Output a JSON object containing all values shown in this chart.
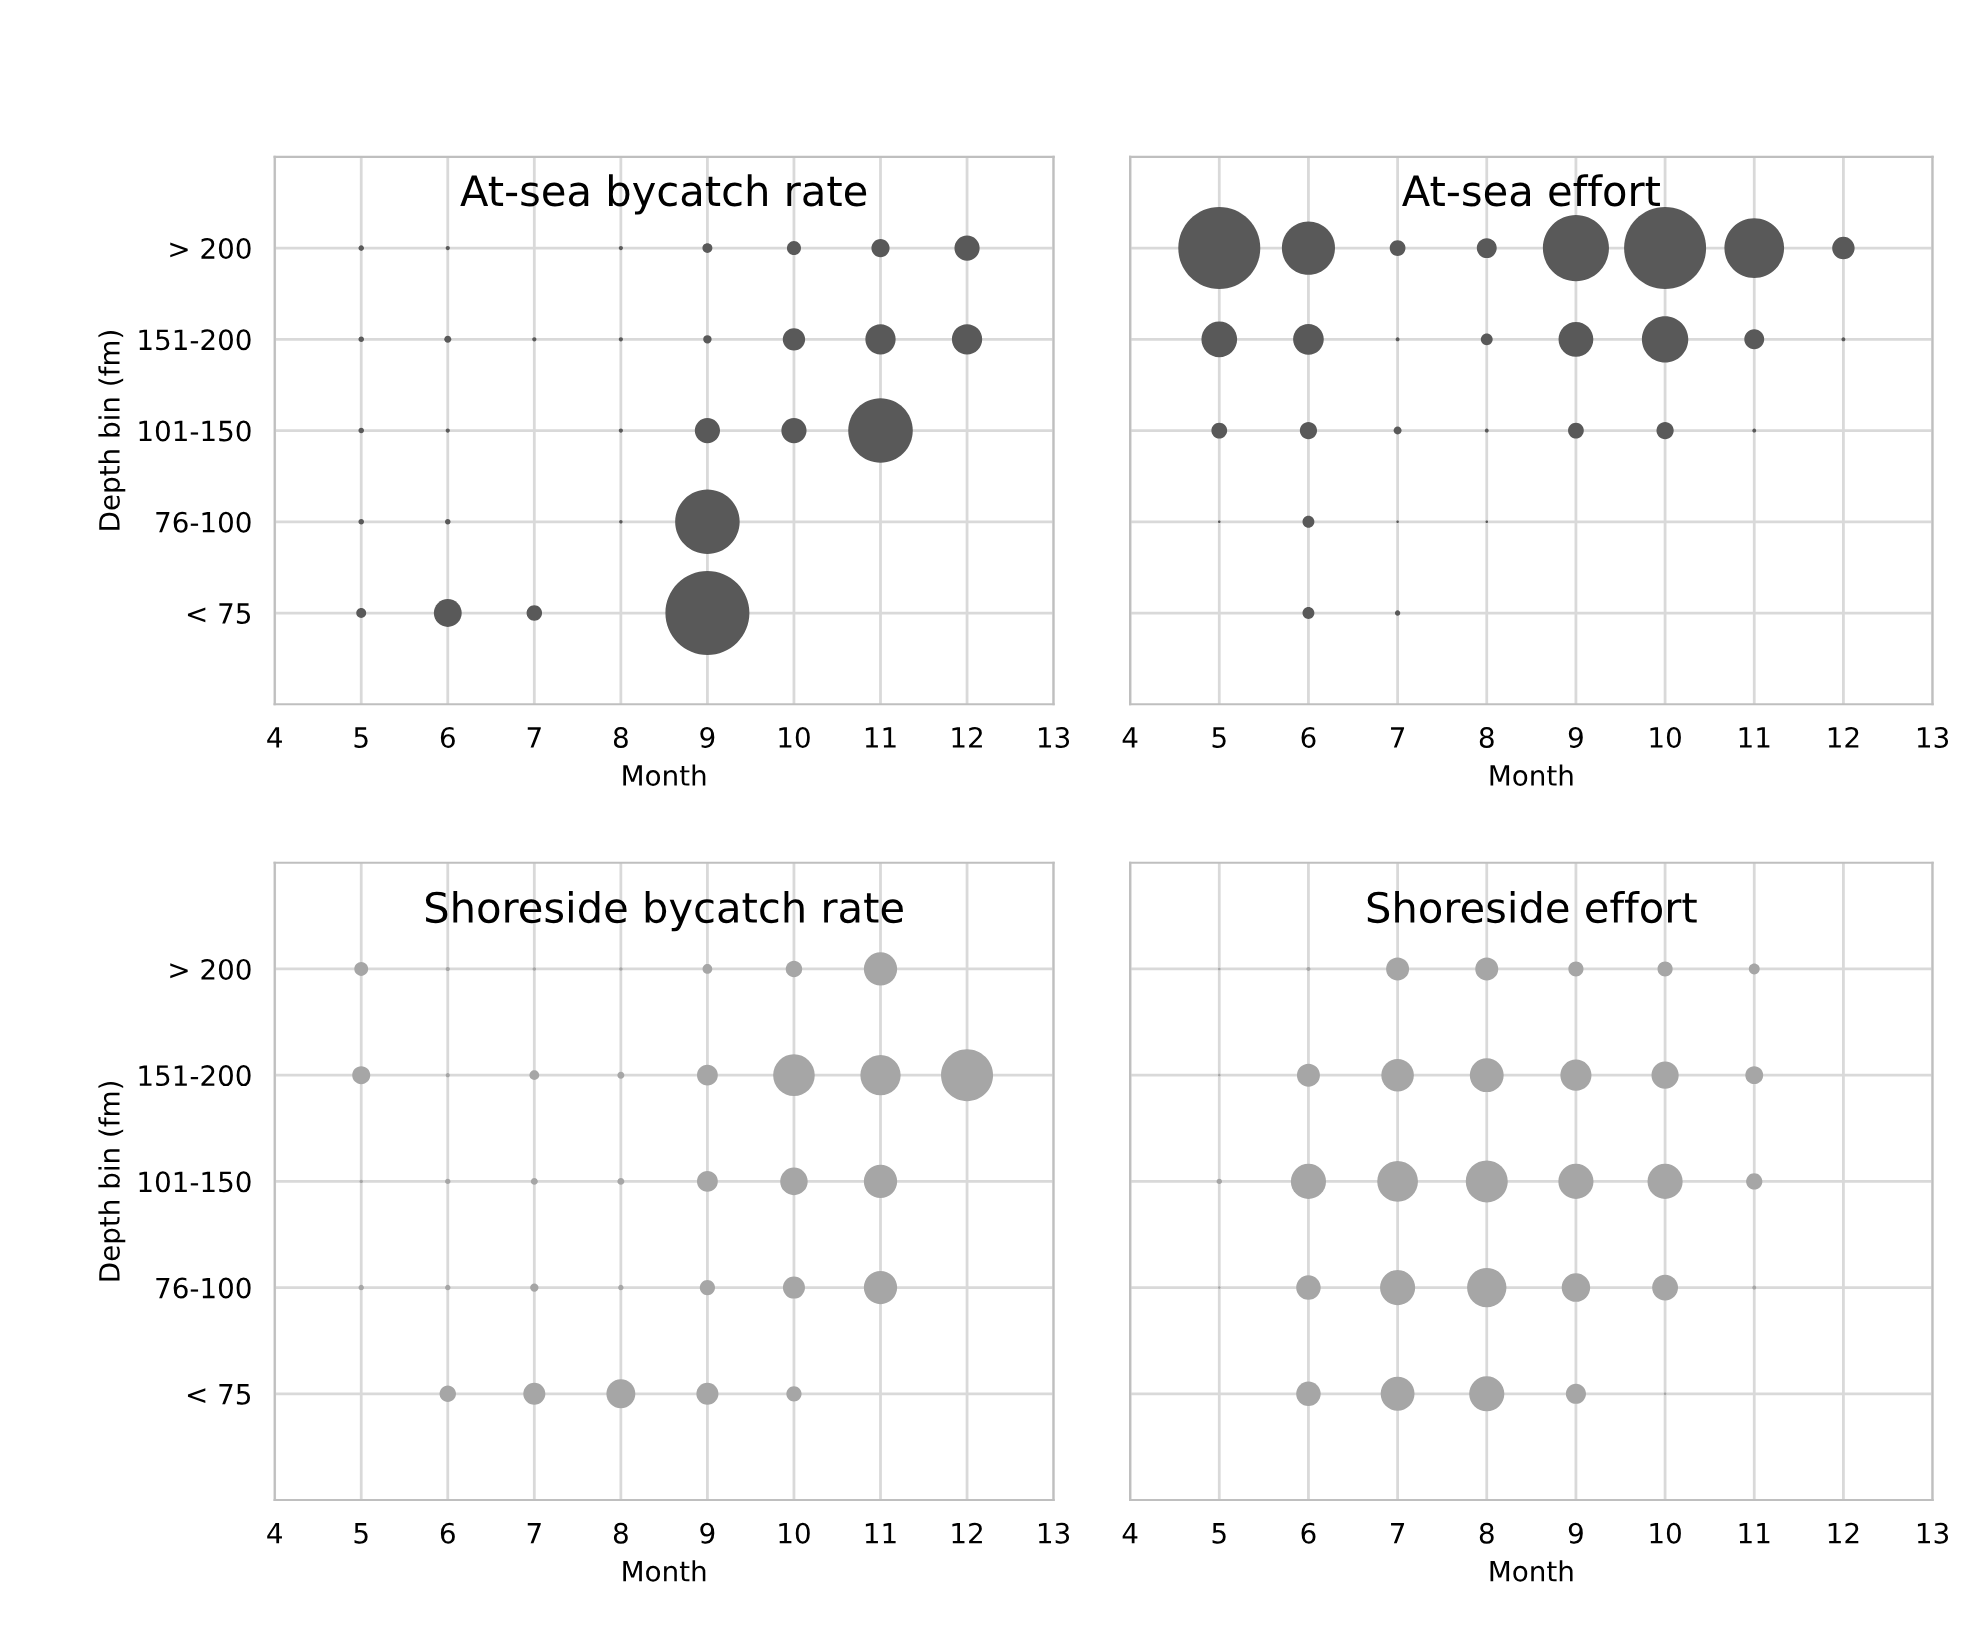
{
  "chart_data": [
    {
      "type": "bubble",
      "orientation": "horizontal",
      "title": "At-sea bycatch rate",
      "xlabel": "Month",
      "ylabel": "Depth bin (fm)",
      "xlim": [
        4,
        13
      ],
      "xticks": [
        4,
        5,
        6,
        7,
        8,
        9,
        10,
        11,
        12,
        13
      ],
      "categories": [
        "> 200",
        "151-200",
        "101-150",
        "76-100",
        "< 75"
      ],
      "grid": true,
      "series": [
        {
          "color": "#595959",
          "values": [
            5,
            5,
            5,
            5,
            5
          ],
          "sizes": [
            0.0044,
            0.0044,
            0.0044,
            0.0044,
            0.014
          ]
        },
        {
          "color": "#595959",
          "values": [
            6,
            6,
            6,
            6,
            6
          ],
          "sizes": [
            0.0025,
            0.007,
            0.0025,
            0.0044,
            0.11
          ]
        },
        {
          "color": "#595959",
          "values": [
            null,
            7,
            null,
            null,
            7
          ],
          "sizes": [
            null,
            0.0025,
            null,
            null,
            0.034
          ]
        },
        {
          "color": "#595959",
          "values": [
            8,
            8,
            8,
            8,
            null
          ],
          "sizes": [
            0.0025,
            0.0025,
            0.0025,
            0.0017,
            null
          ]
        },
        {
          "color": "#595959",
          "values": [
            9,
            9,
            9,
            9,
            9
          ],
          "sizes": [
            0.014,
            0.01,
            0.09,
            0.59,
            1
          ]
        },
        {
          "color": "#595959",
          "values": [
            10,
            10,
            10,
            null,
            null
          ],
          "sizes": [
            0.028,
            0.071,
            0.09,
            null,
            null
          ]
        },
        {
          "color": "#595959",
          "values": [
            11,
            11,
            11,
            null,
            null
          ],
          "sizes": [
            0.047,
            0.13,
            0.59,
            null,
            null
          ]
        },
        {
          "color": "#595959",
          "values": [
            12,
            12,
            null,
            null,
            null
          ],
          "sizes": [
            0.09,
            0.13,
            null,
            null,
            null
          ]
        }
      ]
    },
    {
      "type": "bubble",
      "orientation": "horizontal",
      "title": "At-sea effort",
      "xlabel": "Month",
      "xlim": [
        4,
        13
      ],
      "xticks": [
        4,
        5,
        6,
        7,
        8,
        9,
        10,
        11,
        12,
        13
      ],
      "categories": [
        null,
        null,
        null,
        null,
        null
      ],
      "tick_labels": "x",
      "grid": true,
      "series": [
        {
          "color": "#595959",
          "values": [
            5,
            5,
            5,
            5,
            null
          ],
          "sizes": [
            1,
            0.19,
            0.037,
            0.001,
            null
          ]
        },
        {
          "color": "#595959",
          "values": [
            6,
            6,
            6,
            6,
            6
          ],
          "sizes": [
            0.42,
            0.14,
            0.044,
            0.021,
            0.021
          ]
        },
        {
          "color": "#595959",
          "values": [
            7,
            7,
            7,
            7,
            7
          ],
          "sizes": [
            0.037,
            0.0023,
            0.0094,
            0.001,
            0.0042
          ]
        },
        {
          "color": "#595959",
          "values": [
            8,
            8,
            8,
            8,
            null
          ],
          "sizes": [
            0.059,
            0.021,
            0.0023,
            0.001,
            null
          ]
        },
        {
          "color": "#595959",
          "values": [
            9,
            9,
            9,
            null,
            null
          ],
          "sizes": [
            0.65,
            0.18,
            0.037,
            null,
            null
          ]
        },
        {
          "color": "#595959",
          "values": [
            10,
            10,
            10,
            null,
            null
          ],
          "sizes": [
            1,
            0.32,
            0.044,
            null,
            null
          ]
        },
        {
          "color": "#595959",
          "values": [
            11,
            11,
            11,
            null,
            null
          ],
          "sizes": [
            0.53,
            0.059,
            0.0023,
            null,
            null
          ]
        },
        {
          "color": "#595959",
          "values": [
            12,
            12,
            null,
            null,
            null
          ],
          "sizes": [
            0.075,
            0.0023,
            null,
            null,
            null
          ]
        }
      ]
    },
    {
      "type": "bubble",
      "orientation": "horizontal",
      "title": "Shoreside bycatch rate",
      "xlabel": "Month",
      "ylabel": "Depth bin (fm)",
      "xlim": [
        4,
        13
      ],
      "xticks": [
        4,
        5,
        6,
        7,
        8,
        9,
        10,
        11,
        12,
        13
      ],
      "categories": [
        "> 200",
        "151-200",
        "101-150",
        "76-100",
        "< 75"
      ],
      "grid": true,
      "series": [
        {
          "color": "#a6a6a6",
          "values": [
            5,
            5,
            5,
            5,
            null
          ],
          "sizes": [
            0.071,
            0.12,
            0.0044,
            0.011,
            null
          ]
        },
        {
          "color": "#a6a6a6",
          "values": [
            6,
            6,
            6,
            6,
            6
          ],
          "sizes": [
            0.0064,
            0.0064,
            0.011,
            0.011,
            0.1
          ]
        },
        {
          "color": "#a6a6a6",
          "values": [
            7,
            7,
            7,
            7,
            7
          ],
          "sizes": [
            0.0044,
            0.035,
            0.018,
            0.026,
            0.18
          ]
        },
        {
          "color": "#a6a6a6",
          "values": [
            8,
            8,
            8,
            8,
            8
          ],
          "sizes": [
            0.0044,
            0.018,
            0.018,
            0.011,
            0.31
          ]
        },
        {
          "color": "#a6a6a6",
          "values": [
            9,
            9,
            9,
            9,
            9
          ],
          "sizes": [
            0.035,
            0.16,
            0.16,
            0.086,
            0.18
          ]
        },
        {
          "color": "#a6a6a6",
          "values": [
            10,
            10,
            10,
            10,
            10
          ],
          "sizes": [
            0.1,
            0.64,
            0.28,
            0.18,
            0.086
          ]
        },
        {
          "color": "#a6a6a6",
          "values": [
            11,
            11,
            11,
            11,
            null
          ],
          "sizes": [
            0.41,
            0.6,
            0.41,
            0.41,
            null
          ]
        },
        {
          "color": "#a6a6a6",
          "values": [
            null,
            12,
            null,
            null,
            null
          ],
          "sizes": [
            null,
            1,
            null,
            null,
            null
          ]
        }
      ]
    },
    {
      "type": "bubble",
      "orientation": "horizontal",
      "title": "Shoreside effort",
      "xlabel": "Month",
      "xlim": [
        4,
        13
      ],
      "xticks": [
        4,
        5,
        6,
        7,
        8,
        9,
        10,
        11,
        12,
        13
      ],
      "categories": [
        null,
        null,
        null,
        null,
        null
      ],
      "tick_labels": "x",
      "grid": true,
      "series": [
        {
          "color": "#a6a6a6",
          "values": [
            5,
            5,
            5,
            5,
            null
          ],
          "sizes": [
            0.004,
            0.004,
            0.017,
            0.004,
            null
          ]
        },
        {
          "color": "#a6a6a6",
          "values": [
            6,
            6,
            6,
            6,
            6
          ],
          "sizes": [
            0.009,
            0.3,
            0.7,
            0.34,
            0.34
          ]
        },
        {
          "color": "#a6a6a6",
          "values": [
            7,
            7,
            7,
            7,
            7
          ],
          "sizes": [
            0.3,
            0.6,
            0.94,
            0.7,
            0.65
          ]
        },
        {
          "color": "#a6a6a6",
          "values": [
            8,
            8,
            8,
            8,
            8
          ],
          "sizes": [
            0.3,
            0.65,
            1,
            0.88,
            0.7
          ]
        },
        {
          "color": "#a6a6a6",
          "values": [
            9,
            9,
            9,
            9,
            9
          ],
          "sizes": [
            0.13,
            0.55,
            0.7,
            0.46,
            0.23
          ]
        },
        {
          "color": "#a6a6a6",
          "values": [
            10,
            10,
            10,
            10,
            10
          ],
          "sizes": [
            0.13,
            0.42,
            0.7,
            0.38,
            0.004
          ]
        },
        {
          "color": "#a6a6a6",
          "values": [
            11,
            11,
            11,
            11,
            null
          ],
          "sizes": [
            0.067,
            0.18,
            0.15,
            0.009,
            null
          ]
        }
      ]
    }
  ]
}
